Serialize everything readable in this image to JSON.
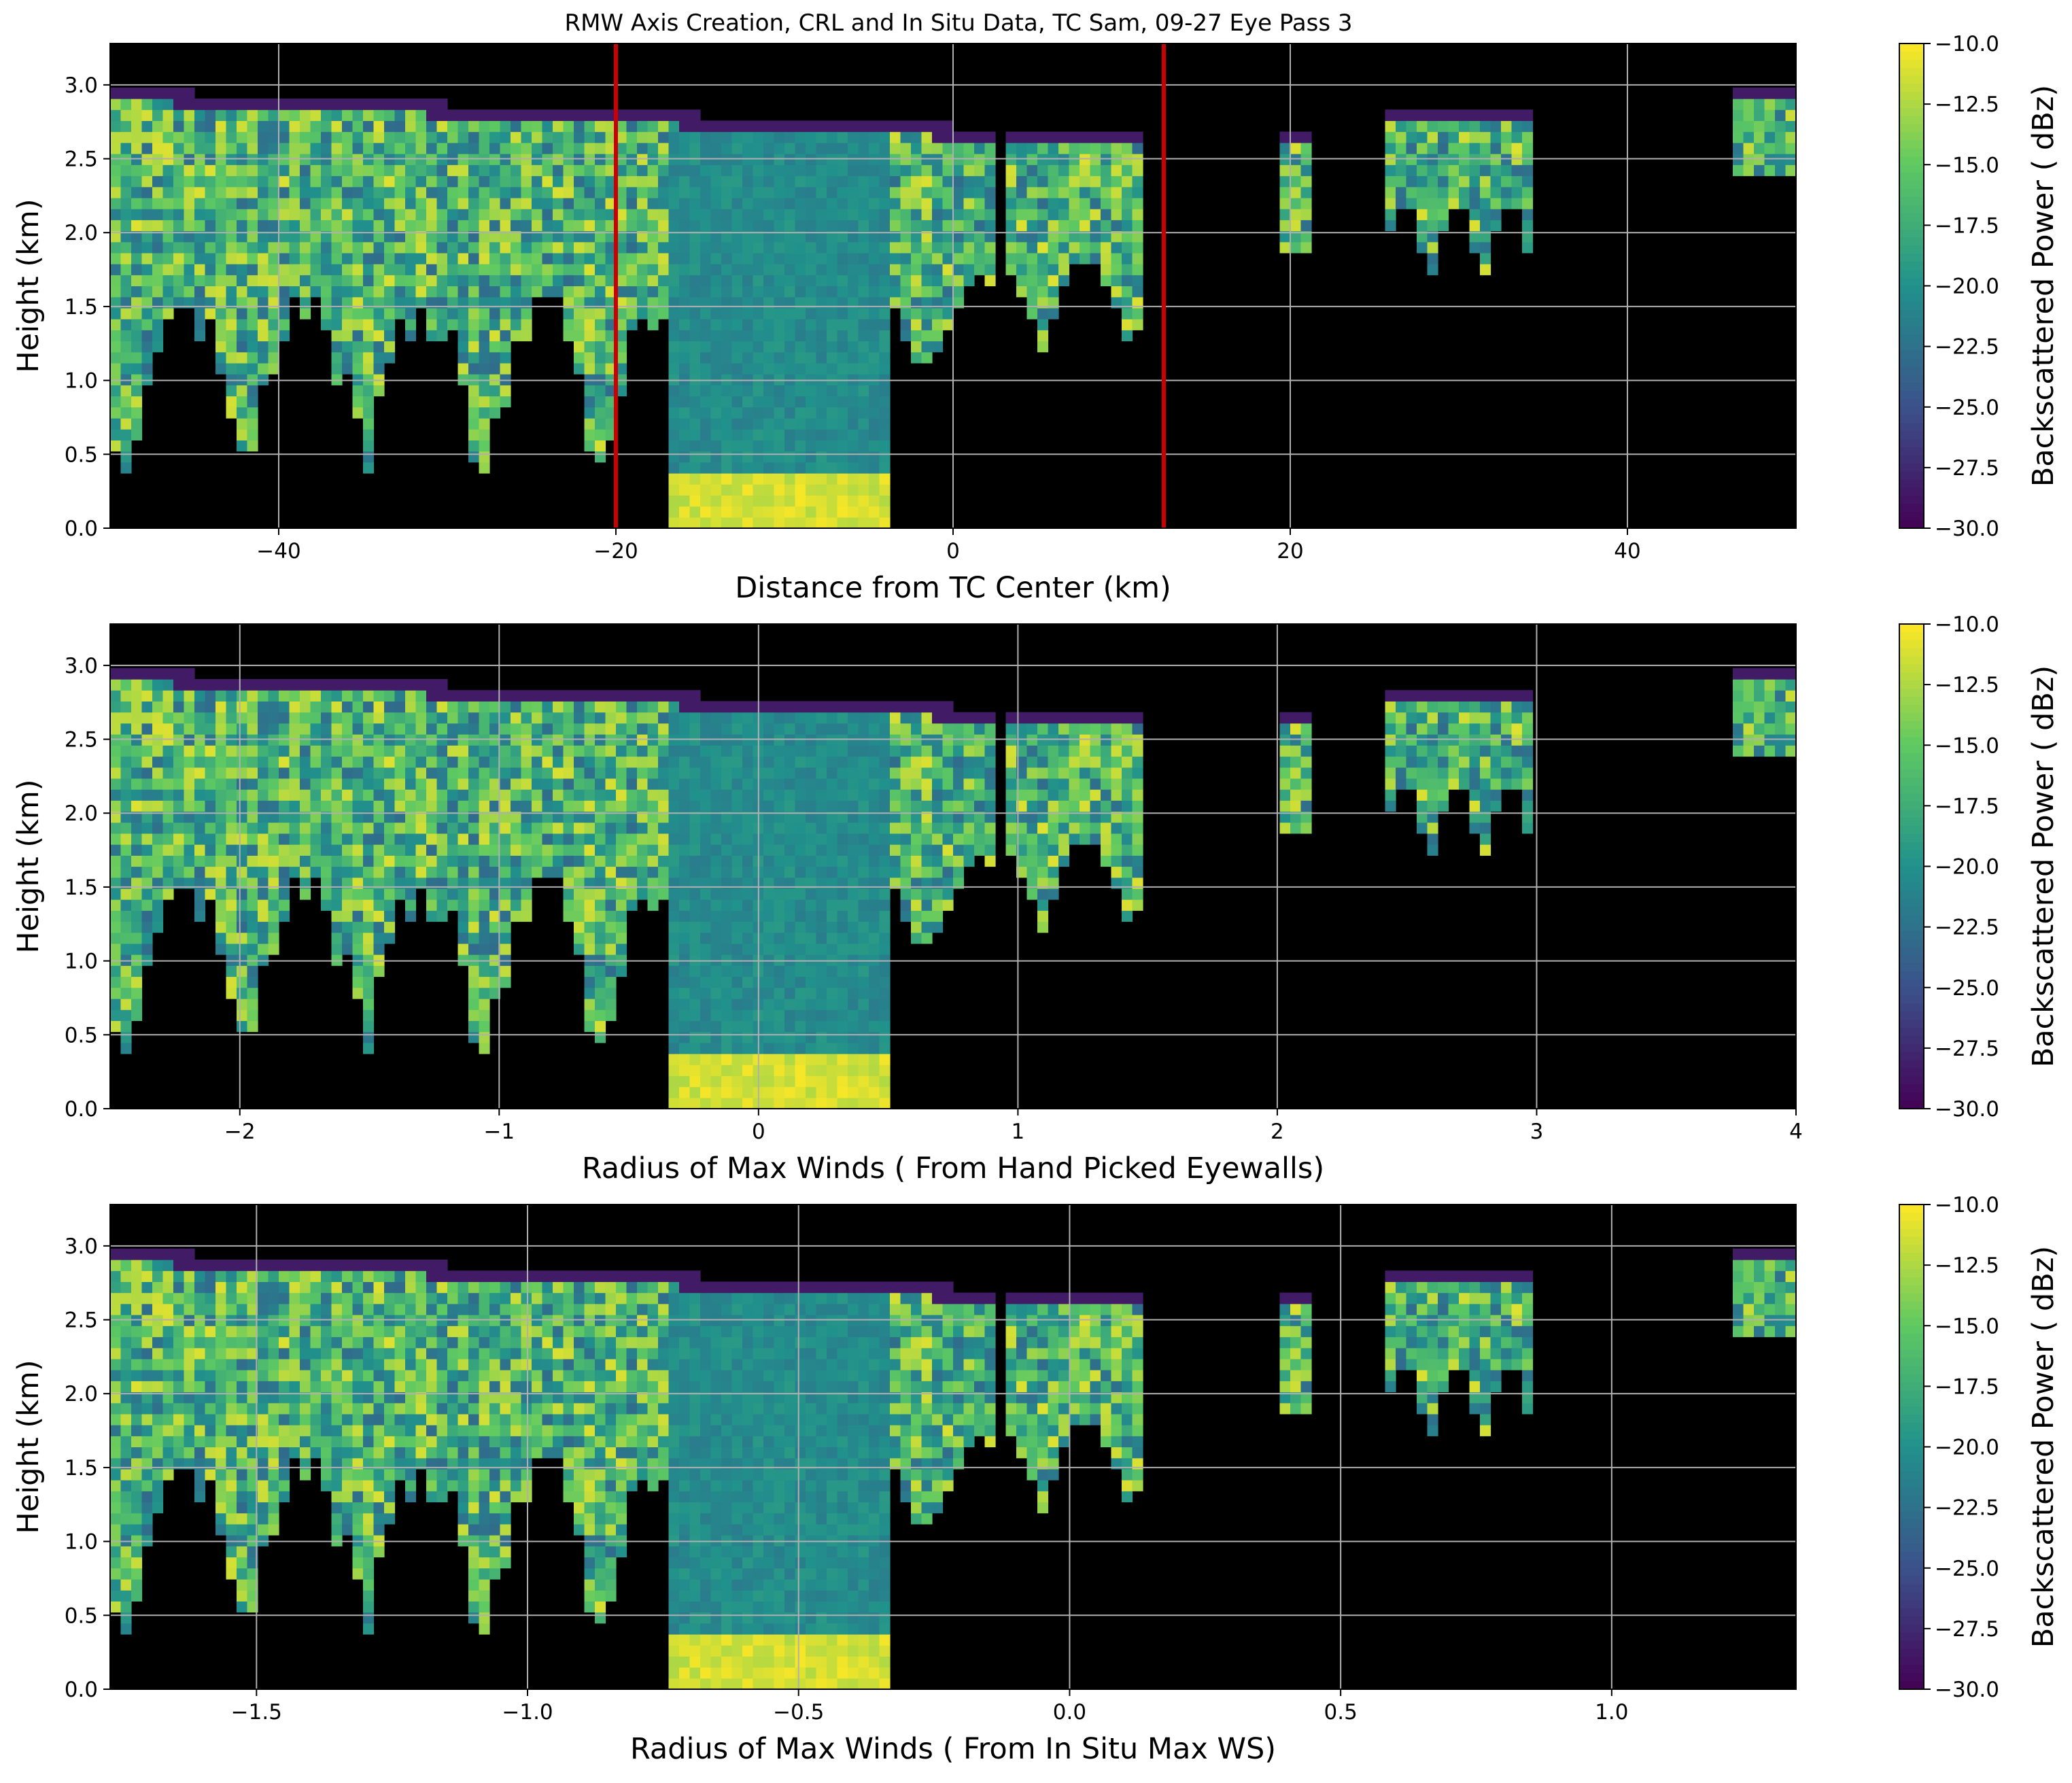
{
  "figure_title": "RMW Axis Creation, CRL and In Situ Data, TC Sam, 09-27 Eye Pass 3",
  "colors": {
    "background": "#000000",
    "grid": "#b0b0b0",
    "marker_lines": "#cc0000",
    "colormap": "viridis",
    "colormap_stops": [
      "#440154",
      "#3b528b",
      "#21918c",
      "#5ec962",
      "#fde725"
    ]
  },
  "chart_data": [
    {
      "type": "heatmap",
      "title": "",
      "xlabel": "Distance from TC Center (km)",
      "ylabel": "Height (km)",
      "xlim": [
        -50,
        50
      ],
      "ylim": [
        0,
        3.28
      ],
      "xticks": [
        -40,
        -20,
        0,
        20,
        40
      ],
      "xtick_labels": [
        "−40",
        "−20",
        "0",
        "20",
        "40"
      ],
      "yticks": [
        0.0,
        0.5,
        1.0,
        1.5,
        2.0,
        2.5,
        3.0
      ],
      "ytick_labels": [
        "0.0",
        "0.5",
        "1.0",
        "1.5",
        "2.0",
        "2.5",
        "3.0"
      ],
      "vertical_lines": [
        -20,
        12.5
      ],
      "grid": true,
      "colorbar": {
        "label": "Backscattered Power ( dBz)",
        "range": [
          -30,
          -10
        ],
        "ticks": [
          -10,
          -12.5,
          -15,
          -17.5,
          -20,
          -22.5,
          -25,
          -27.5,
          -30
        ],
        "tick_labels": [
          "−10.0",
          "−12.5",
          "−15.0",
          "−17.5",
          "−20.0",
          "−22.5",
          "−25.0",
          "−27.5",
          "−30.0"
        ]
      }
    },
    {
      "type": "heatmap",
      "title": "",
      "xlabel": "Radius of Max Winds ( From Hand Picked Eyewalls)",
      "ylabel": "Height (km)",
      "xlim": [
        -2.5,
        4.0
      ],
      "ylim": [
        0,
        3.28
      ],
      "xticks": [
        -2,
        -1,
        0,
        1,
        2,
        3,
        4
      ],
      "xtick_labels": [
        "−2",
        "−1",
        "0",
        "1",
        "2",
        "3",
        "4"
      ],
      "yticks": [
        0.0,
        0.5,
        1.0,
        1.5,
        2.0,
        2.5,
        3.0
      ],
      "ytick_labels": [
        "0.0",
        "0.5",
        "1.0",
        "1.5",
        "2.0",
        "2.5",
        "3.0"
      ],
      "vertical_lines": [],
      "grid": true,
      "colorbar": {
        "label": "Backscattered Power ( dBz)",
        "range": [
          -30,
          -10
        ],
        "ticks": [
          -10,
          -12.5,
          -15,
          -17.5,
          -20,
          -22.5,
          -25,
          -27.5,
          -30
        ],
        "tick_labels": [
          "−10.0",
          "−12.5",
          "−15.0",
          "−17.5",
          "−20.0",
          "−22.5",
          "−25.0",
          "−27.5",
          "−30.0"
        ]
      }
    },
    {
      "type": "heatmap",
      "title": "",
      "xlabel": "Radius of Max Winds ( From In Situ Max WS)",
      "ylabel": "Height (km)",
      "xlim": [
        -1.77,
        1.34
      ],
      "ylim": [
        0,
        3.28
      ],
      "xticks": [
        -1.5,
        -1.0,
        -0.5,
        0.0,
        0.5,
        1.0
      ],
      "xtick_labels": [
        "−1.5",
        "−1.0",
        "−0.5",
        "0.0",
        "0.5",
        "1.0"
      ],
      "yticks": [
        0.0,
        0.5,
        1.0,
        1.5,
        2.0,
        2.5,
        3.0
      ],
      "ytick_labels": [
        "0.0",
        "0.5",
        "1.0",
        "1.5",
        "2.0",
        "2.5",
        "3.0"
      ],
      "vertical_lines": [],
      "grid": true,
      "colorbar": {
        "label": "Backscattered Power ( dBz)",
        "range": [
          -30,
          -10
        ],
        "ticks": [
          -10,
          -12.5,
          -15,
          -17.5,
          -20,
          -22.5,
          -25,
          -27.5,
          -30
        ],
        "tick_labels": [
          "−10.0",
          "−12.5",
          "−15.0",
          "−17.5",
          "−20.0",
          "−22.5",
          "−25.0",
          "−27.5",
          "−30.0"
        ]
      }
    }
  ]
}
